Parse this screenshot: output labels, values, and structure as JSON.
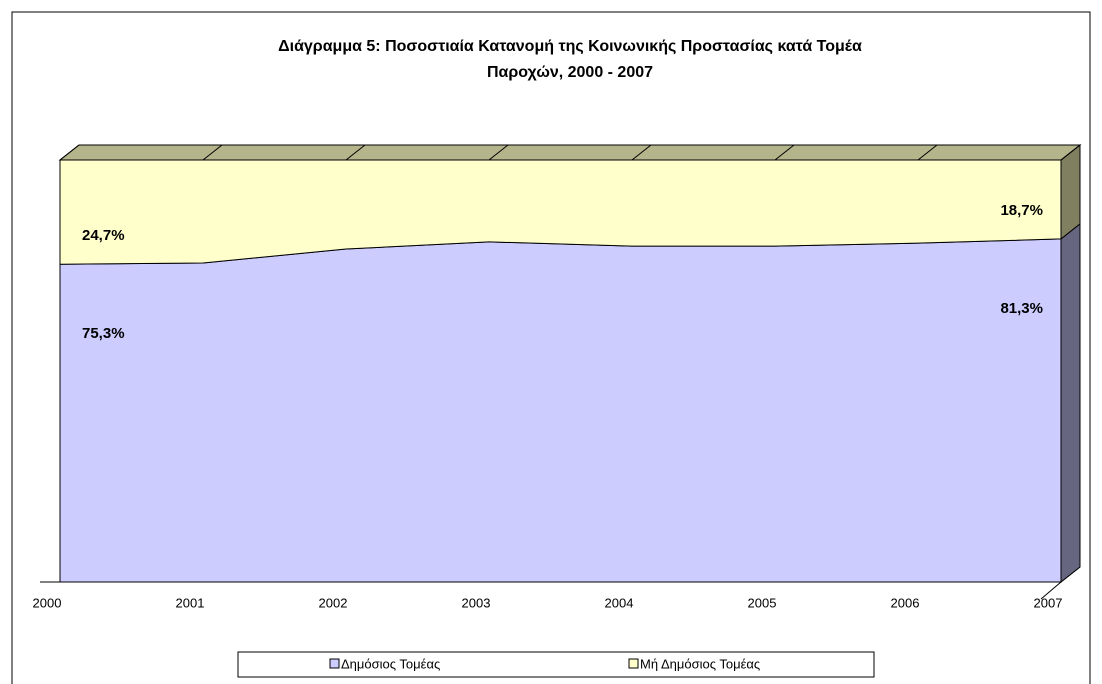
{
  "chart_data": {
    "type": "area",
    "title": [
      "Διάγραμμα 5: Ποσοστιαία Κατανομή της Κοινωνικής Προστασίας κατά Τομέα",
      "Παροχών, 2000 - 2007"
    ],
    "stacked": true,
    "categories": [
      "2000",
      "2001",
      "2002",
      "2003",
      "2004",
      "2005",
      "2006",
      "2007"
    ],
    "series": [
      {
        "name": "Δημόσιος Τομέας",
        "color": "#ccccff",
        "side_color": "#666680",
        "values": [
          75.3,
          75.6,
          78.9,
          80.6,
          79.6,
          79.6,
          80.3,
          81.3
        ],
        "value_labels": [
          "75,3%",
          null,
          null,
          null,
          null,
          null,
          null,
          "81,3%"
        ]
      },
      {
        "name": "Μή Δημόσιος Τομέας",
        "color": "#ffffcc",
        "side_color": "#808060",
        "values": [
          24.7,
          24.4,
          21.1,
          19.4,
          20.4,
          20.4,
          19.7,
          18.7
        ],
        "value_labels": [
          "24,7%",
          null,
          null,
          null,
          null,
          null,
          null,
          "18,7%"
        ]
      }
    ],
    "ylim": [
      0,
      100
    ],
    "legend": "bottom"
  }
}
